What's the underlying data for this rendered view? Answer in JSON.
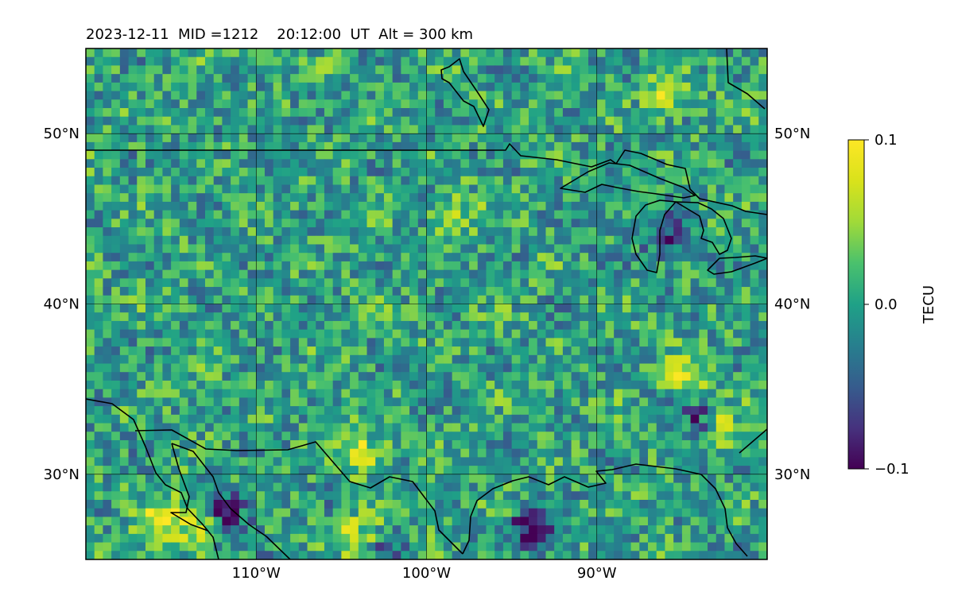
{
  "title": "2023-12-11  MID =1212    20:12:00  UT  Alt = 300 km",
  "chart_data": {
    "type": "heatmap",
    "title": "2023-12-11  MID =1212    20:12:00  UT  Alt = 300 km",
    "x_ticks": [
      {
        "value": -110,
        "label": "110°W"
      },
      {
        "value": -100,
        "label": "100°W"
      },
      {
        "value": -90,
        "label": "90°W"
      }
    ],
    "y_ticks": [
      {
        "value": 50,
        "label": "50°N"
      },
      {
        "value": 40,
        "label": "40°N"
      },
      {
        "value": 30,
        "label": "30°N"
      }
    ],
    "xlim": [
      -120,
      -80
    ],
    "ylim": [
      25,
      55
    ],
    "grid": true,
    "colormap": "viridis",
    "colorbar": {
      "label": "TECU",
      "vmin": -0.1,
      "vmax": 0.1,
      "ticks": [
        {
          "value": 0.1,
          "label": "0.1"
        },
        {
          "value": 0.0,
          "label": "0.0"
        },
        {
          "value": -0.1,
          "label": "−0.1"
        }
      ]
    },
    "cell_size_deg": 0.5,
    "field_description_values": {
      "background_mean": 0.0,
      "hotspots": [
        {
          "lon": -114,
          "lat": 27.5,
          "value": 0.08
        },
        {
          "lon": -116,
          "lat": 27.5,
          "value": 0.06
        },
        {
          "lon": -104,
          "lat": 26.5,
          "value": 0.09
        },
        {
          "lon": -104,
          "lat": 31.5,
          "value": 0.07
        },
        {
          "lon": -98.5,
          "lat": 45.5,
          "value": 0.05
        },
        {
          "lon": -85,
          "lat": 36,
          "value": 0.07
        },
        {
          "lon": -83,
          "lat": 33,
          "value": 0.07
        },
        {
          "lon": -86,
          "lat": 52.5,
          "value": 0.06
        },
        {
          "lon": -94,
          "lat": 27,
          "value": -0.1
        },
        {
          "lon": -112,
          "lat": 28,
          "value": -0.08
        },
        {
          "lon": -103,
          "lat": 26,
          "value": -0.07
        },
        {
          "lon": -84,
          "lat": 33.5,
          "value": -0.07
        },
        {
          "lon": -86,
          "lat": 44,
          "value": -0.06
        }
      ]
    },
    "colors": {
      "grid": "#000000",
      "coastline": "#000000",
      "viridis_low": "#440154",
      "viridis_mid": "#21918c",
      "viridis_high": "#fde725"
    }
  }
}
